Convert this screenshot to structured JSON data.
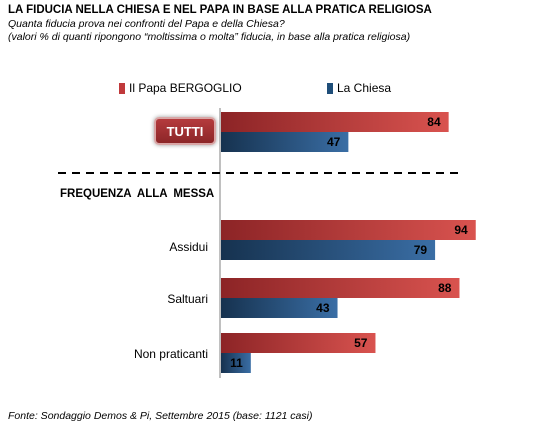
{
  "title": "LA FIDUCIA NELLA CHIESA E NEL PAPA IN BASE ALLA PRATICA RELIGIOSA",
  "subtitle": "Quanta fiducia prova nei confronti del Papa e della Chiesa?",
  "note": "(valori % di quanti ripongono “moltissima o molta” fiducia, in base alla pratica religiosa)",
  "section_label": "FREQUENZA ALLA MESSA",
  "footer": "Fonte: Sondaggio Demos & Pi, Settembre 2015 (base: 1121 casi)",
  "colors": {
    "papa": "#c0393b",
    "chiesa": "#1f4e79"
  },
  "chart_data": {
    "type": "bar",
    "orientation": "horizontal",
    "categories": [
      "TUTTI",
      "Assidui",
      "Saltuari",
      "Non praticanti"
    ],
    "series": [
      {
        "name": "Il Papa BERGOGLIO",
        "values": [
          84,
          94,
          88,
          57
        ]
      },
      {
        "name": "La Chiesa",
        "values": [
          47,
          79,
          43,
          11
        ]
      }
    ],
    "xlim": [
      0,
      100
    ],
    "grid": false,
    "legend_position": "top"
  }
}
